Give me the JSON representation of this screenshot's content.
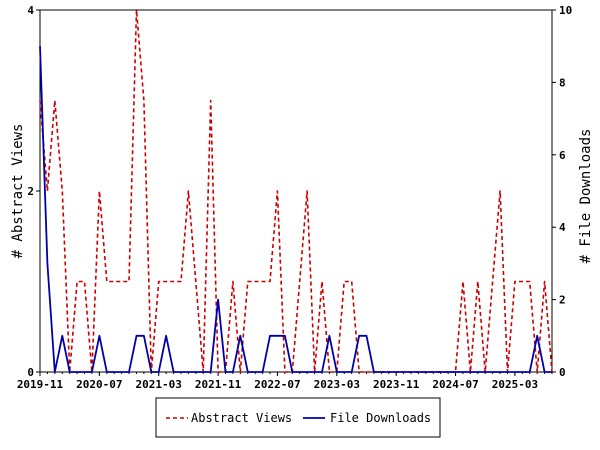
{
  "chart_data": {
    "type": "line",
    "title": "",
    "x_tick_labels": [
      "2019-11",
      "2020-07",
      "2021-03",
      "2021-11",
      "2022-07",
      "2023-03",
      "2023-11",
      "2024-07",
      "2025-03"
    ],
    "left_axis": {
      "label": "# Abstract Views",
      "range": [
        0,
        4
      ],
      "ticks": [
        0,
        2,
        4
      ]
    },
    "right_axis": {
      "label": "# File Downloads",
      "range": [
        0,
        10
      ],
      "ticks": [
        0,
        2,
        4,
        6,
        8,
        10
      ]
    },
    "x_range_months": [
      "2019-11",
      "2025-08"
    ],
    "months": [
      "2019-11",
      "2019-12",
      "2020-01",
      "2020-02",
      "2020-03",
      "2020-04",
      "2020-05",
      "2020-06",
      "2020-07",
      "2020-08",
      "2020-09",
      "2020-10",
      "2020-11",
      "2020-12",
      "2021-01",
      "2021-02",
      "2021-03",
      "2021-04",
      "2021-05",
      "2021-06",
      "2021-07",
      "2021-08",
      "2021-09",
      "2021-10",
      "2021-11",
      "2021-12",
      "2022-01",
      "2022-02",
      "2022-03",
      "2022-04",
      "2022-05",
      "2022-06",
      "2022-07",
      "2022-08",
      "2022-09",
      "2022-10",
      "2022-11",
      "2022-12",
      "2023-01",
      "2023-02",
      "2023-03",
      "2023-04",
      "2023-05",
      "2023-06",
      "2023-07",
      "2023-08",
      "2023-09",
      "2023-10",
      "2023-11",
      "2023-12",
      "2024-01",
      "2024-02",
      "2024-03",
      "2024-04",
      "2024-05",
      "2024-06",
      "2024-07",
      "2024-08",
      "2024-09",
      "2024-10",
      "2024-11",
      "2024-12",
      "2025-01",
      "2025-02",
      "2025-03",
      "2025-04",
      "2025-05",
      "2025-06",
      "2025-07",
      "2025-08"
    ],
    "series": [
      {
        "name": "Abstract Views",
        "axis": "left",
        "color": "#cc0000",
        "dash": "dashed",
        "values": [
          3,
          2,
          3,
          2,
          0,
          1,
          1,
          0,
          2,
          1,
          1,
          1,
          1,
          4,
          3,
          0,
          1,
          1,
          1,
          1,
          2,
          1,
          0,
          3,
          0,
          0,
          1,
          0,
          1,
          1,
          1,
          1,
          2,
          0,
          0,
          1,
          2,
          0,
          1,
          0,
          0,
          1,
          1,
          0,
          0,
          0,
          0,
          0,
          0,
          0,
          0,
          0,
          0,
          0,
          0,
          0,
          0,
          1,
          0,
          1,
          0,
          1,
          2,
          0,
          1,
          1,
          1,
          0,
          1,
          0
        ]
      },
      {
        "name": "File Downloads",
        "axis": "right",
        "color": "#0000aa",
        "dash": "solid",
        "values": [
          9,
          3,
          0,
          1,
          0,
          0,
          0,
          0,
          1,
          0,
          0,
          0,
          0,
          1,
          1,
          0,
          0,
          1,
          0,
          0,
          0,
          0,
          0,
          0,
          2,
          0,
          0,
          1,
          0,
          0,
          0,
          1,
          1,
          1,
          0,
          0,
          0,
          0,
          0,
          1,
          0,
          0,
          0,
          1,
          1,
          0,
          0,
          0,
          0,
          0,
          0,
          0,
          0,
          0,
          0,
          0,
          0,
          0,
          0,
          0,
          0,
          0,
          0,
          0,
          0,
          0,
          0,
          1,
          0,
          0
        ]
      }
    ],
    "grid": false,
    "legend_position": "bottom-center"
  }
}
